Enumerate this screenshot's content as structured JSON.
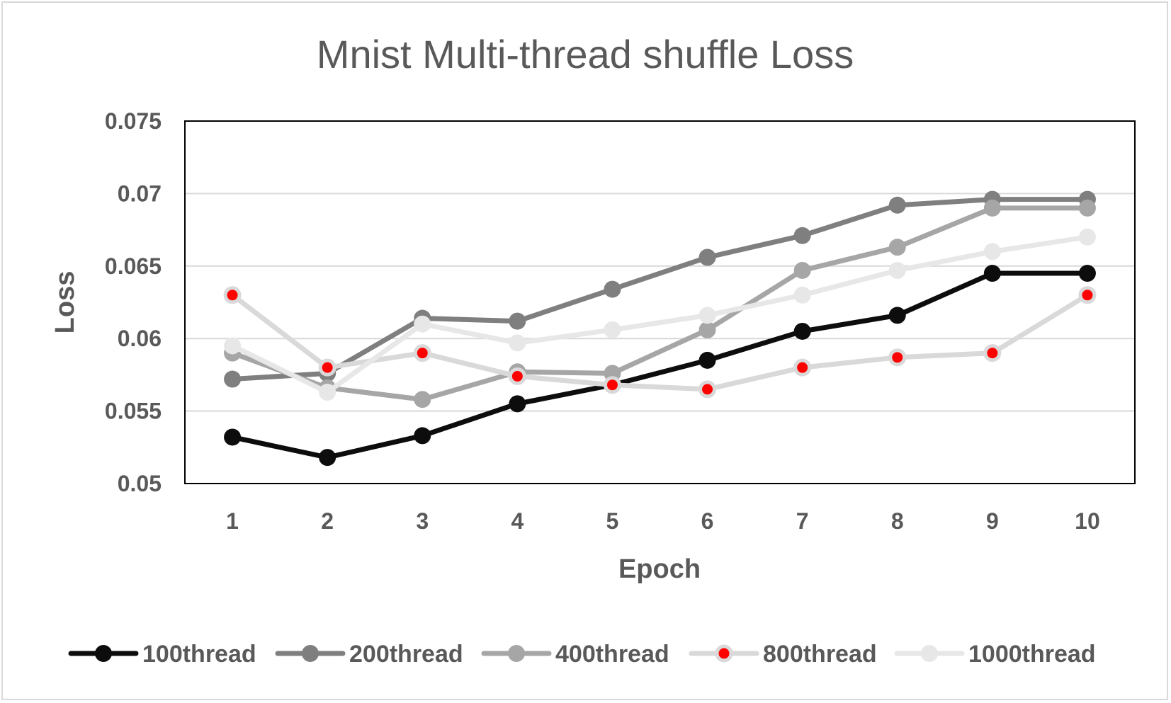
{
  "chart_data": {
    "type": "line",
    "title": "Mnist Multi-thread shuffle Loss",
    "xlabel": "Epoch",
    "ylabel": "Loss",
    "categories": [
      "1",
      "2",
      "3",
      "4",
      "5",
      "6",
      "7",
      "8",
      "9",
      "10"
    ],
    "ylim": [
      0.05,
      0.075
    ],
    "yticks": [
      "0.05",
      "0.055",
      "0.06",
      "0.065",
      "0.07",
      "0.075"
    ],
    "grid": true,
    "legend_position": "bottom",
    "series": [
      {
        "name": "100thread",
        "values": [
          0.0532,
          0.0518,
          0.0533,
          0.0555,
          0.0568,
          0.0585,
          0.0605,
          0.0616,
          0.0645,
          0.0645
        ],
        "line_color": "#0d0d0d",
        "marker_color": "#0d0d0d"
      },
      {
        "name": "200thread",
        "values": [
          0.0572,
          0.0576,
          0.0614,
          0.0612,
          0.0634,
          0.0656,
          0.0671,
          0.0692,
          0.0696,
          0.0696
        ],
        "line_color": "#7f7f7f",
        "marker_color": "#7f7f7f"
      },
      {
        "name": "400thread",
        "values": [
          0.059,
          0.0566,
          0.0558,
          0.0577,
          0.0576,
          0.0606,
          0.0647,
          0.0663,
          0.069,
          0.069
        ],
        "line_color": "#a6a6a6",
        "marker_color": "#a6a6a6"
      },
      {
        "name": "800thread",
        "values": [
          0.063,
          0.058,
          0.059,
          0.0574,
          0.0568,
          0.0565,
          0.058,
          0.0587,
          0.059,
          0.063
        ],
        "line_color": "#d9d9d9",
        "marker_color": "#ff0000"
      },
      {
        "name": "1000thread",
        "values": [
          0.0595,
          0.0563,
          0.061,
          0.0597,
          0.0606,
          0.0616,
          0.063,
          0.0647,
          0.066,
          0.067
        ],
        "line_color": "#e7e7e7",
        "marker_color": "#e7e7e7"
      }
    ]
  }
}
